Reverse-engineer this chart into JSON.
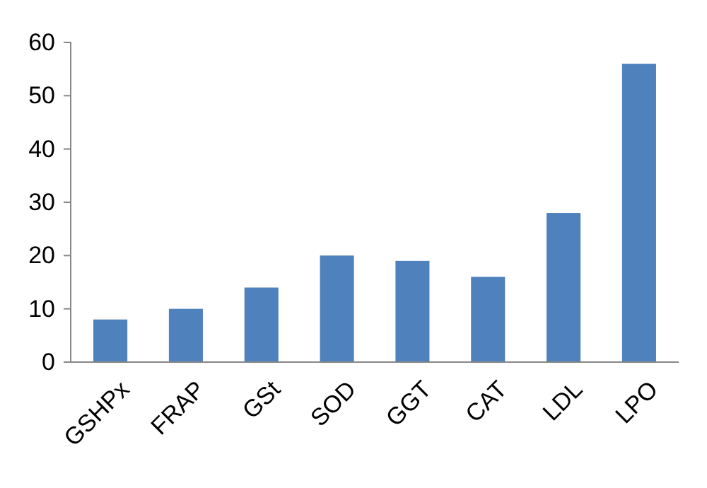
{
  "chart_data": {
    "type": "bar",
    "categories": [
      "GSHPx",
      "FRAP",
      "GSt",
      "SOD",
      "GGT",
      "CAT",
      "LDL",
      "LPO"
    ],
    "values": [
      8,
      10,
      14,
      20,
      19,
      16,
      28,
      56
    ],
    "color": "#4f81bd",
    "ylim": [
      0,
      60
    ],
    "yticks": [
      0,
      10,
      20,
      30,
      40,
      50,
      60
    ],
    "grid": false
  }
}
